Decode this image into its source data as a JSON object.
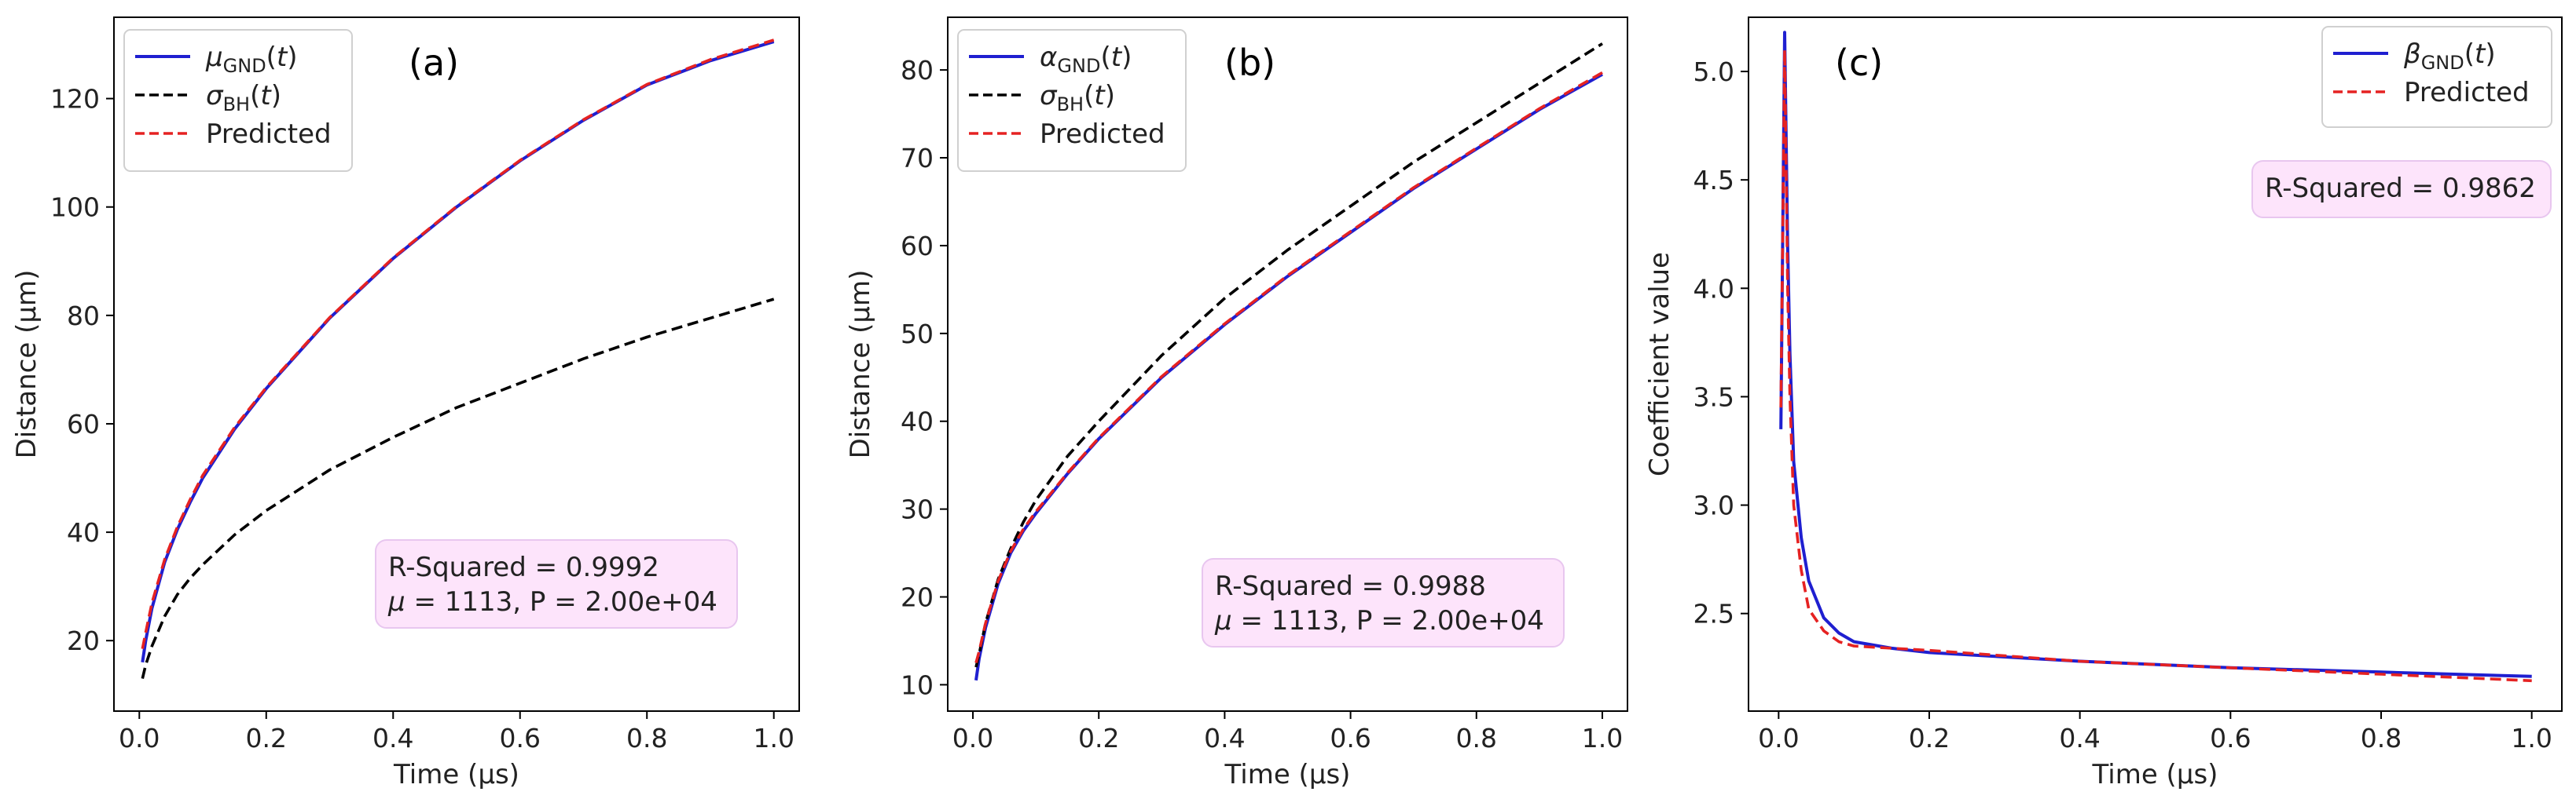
{
  "chart_data": [
    {
      "panel_label": "(a)",
      "type": "line",
      "xlabel": "Time (μs)",
      "ylabel": "Distance (μm)",
      "xlim": [
        -0.04,
        1.04
      ],
      "ylim": [
        7,
        135
      ],
      "xticks": [
        0.0,
        0.2,
        0.4,
        0.6,
        0.8,
        1.0
      ],
      "xtick_labels": [
        "0.0",
        "0.2",
        "0.4",
        "0.6",
        "0.8",
        "1.0"
      ],
      "yticks": [
        20,
        40,
        60,
        80,
        100,
        120
      ],
      "ytick_labels": [
        "20",
        "40",
        "60",
        "80",
        "100",
        "120"
      ],
      "legend_position": "top-left",
      "series": [
        {
          "name": "μ_GND(t)",
          "legend_main": "μ",
          "legend_sub": "GND",
          "legend_tail": "(t)",
          "color": "#1f1fd0",
          "style": "solid",
          "x": [
            0.005,
            0.01,
            0.02,
            0.04,
            0.06,
            0.08,
            0.1,
            0.15,
            0.2,
            0.3,
            0.4,
            0.5,
            0.6,
            0.7,
            0.8,
            0.9,
            1.0
          ],
          "y": [
            16,
            20,
            26,
            34.5,
            40.5,
            45.5,
            50,
            59,
            66.5,
            79.5,
            90.5,
            100,
            108.5,
            116,
            122.5,
            127,
            130.5
          ]
        },
        {
          "name": "σ_BH(t)",
          "legend_main": "σ",
          "legend_sub": "BH",
          "legend_tail": "(t)",
          "color": "#000000",
          "style": "dashed",
          "x": [
            0.005,
            0.01,
            0.02,
            0.04,
            0.06,
            0.08,
            0.1,
            0.15,
            0.2,
            0.3,
            0.4,
            0.5,
            0.6,
            0.7,
            0.8,
            0.9,
            1.0
          ],
          "y": [
            13,
            15.5,
            19,
            24.5,
            28.5,
            31.5,
            34,
            39.5,
            44,
            51.5,
            57.5,
            63,
            67.5,
            72,
            76,
            79.5,
            83
          ]
        },
        {
          "name": "Predicted",
          "legend_main": "Predicted",
          "legend_sub": "",
          "legend_tail": "",
          "color": "#e52222",
          "style": "dashed",
          "x": [
            0.005,
            0.01,
            0.02,
            0.04,
            0.06,
            0.08,
            0.1,
            0.15,
            0.2,
            0.3,
            0.4,
            0.5,
            0.6,
            0.7,
            0.8,
            0.9,
            1.0
          ],
          "y": [
            18.5,
            21.5,
            27,
            35,
            41,
            46,
            50.5,
            59.3,
            66.7,
            79.6,
            90.6,
            100.1,
            108.6,
            116.1,
            122.6,
            127.2,
            130.8
          ]
        }
      ],
      "annotation": {
        "line1": "R-Squared = 0.9992",
        "line2": "μ = 1113, P = 2.00e+04"
      }
    },
    {
      "panel_label": "(b)",
      "type": "line",
      "xlabel": "Time (μs)",
      "ylabel": "Distance (μm)",
      "xlim": [
        -0.04,
        1.04
      ],
      "ylim": [
        7,
        86
      ],
      "xticks": [
        0.0,
        0.2,
        0.4,
        0.6,
        0.8,
        1.0
      ],
      "xtick_labels": [
        "0.0",
        "0.2",
        "0.4",
        "0.6",
        "0.8",
        "1.0"
      ],
      "yticks": [
        10,
        20,
        30,
        40,
        50,
        60,
        70,
        80
      ],
      "ytick_labels": [
        "10",
        "20",
        "30",
        "40",
        "50",
        "60",
        "70",
        "80"
      ],
      "legend_position": "top-left",
      "series": [
        {
          "name": "α_GND(t)",
          "legend_main": "α",
          "legend_sub": "GND",
          "legend_tail": "(t)",
          "color": "#1f1fd0",
          "style": "solid",
          "x": [
            0.005,
            0.01,
            0.02,
            0.04,
            0.06,
            0.08,
            0.1,
            0.15,
            0.2,
            0.3,
            0.4,
            0.5,
            0.6,
            0.7,
            0.8,
            0.9,
            1.0
          ],
          "y": [
            10.5,
            13,
            16.5,
            21.5,
            25,
            27.5,
            29.5,
            34,
            38,
            45,
            51,
            56.5,
            61.5,
            66.5,
            71,
            75.5,
            79.5
          ]
        },
        {
          "name": "σ_BH(t)",
          "legend_main": "σ",
          "legend_sub": "BH",
          "legend_tail": "(t)",
          "color": "#000000",
          "style": "dashed",
          "x": [
            0.005,
            0.01,
            0.02,
            0.04,
            0.06,
            0.08,
            0.1,
            0.15,
            0.2,
            0.3,
            0.4,
            0.5,
            0.6,
            0.7,
            0.8,
            0.9,
            1.0
          ],
          "y": [
            12,
            13.5,
            17,
            22,
            25.5,
            28.5,
            31,
            36,
            40,
            47.5,
            54,
            59.5,
            64.5,
            69.5,
            74,
            78.5,
            83
          ]
        },
        {
          "name": "Predicted",
          "legend_main": "Predicted",
          "legend_sub": "",
          "legend_tail": "",
          "color": "#e52222",
          "style": "dashed",
          "x": [
            0.005,
            0.01,
            0.02,
            0.04,
            0.06,
            0.08,
            0.1,
            0.15,
            0.2,
            0.3,
            0.4,
            0.5,
            0.6,
            0.7,
            0.8,
            0.9,
            1.0
          ],
          "y": [
            12.5,
            13.8,
            17,
            21.8,
            25.2,
            27.7,
            29.7,
            34.1,
            38.1,
            45.1,
            51.1,
            56.6,
            61.6,
            66.6,
            71.1,
            75.6,
            79.7
          ]
        }
      ],
      "annotation": {
        "line1": "R-Squared = 0.9988",
        "line2": "μ = 1113, P = 2.00e+04"
      }
    },
    {
      "panel_label": "(c)",
      "type": "line",
      "xlabel": "Time (μs)",
      "ylabel": "Coefficient value",
      "xlim": [
        -0.04,
        1.04
      ],
      "ylim": [
        2.05,
        5.25
      ],
      "xticks": [
        0.0,
        0.2,
        0.4,
        0.6,
        0.8,
        1.0
      ],
      "xtick_labels": [
        "0.0",
        "0.2",
        "0.4",
        "0.6",
        "0.8",
        "1.0"
      ],
      "yticks": [
        2.5,
        3.0,
        3.5,
        4.0,
        4.5,
        5.0
      ],
      "ytick_labels": [
        "2.5",
        "3.0",
        "3.5",
        "4.0",
        "4.5",
        "5.0"
      ],
      "legend_position": "top-right",
      "series": [
        {
          "name": "β_GND(t)",
          "legend_main": "β",
          "legend_sub": "GND",
          "legend_tail": "(t)",
          "color": "#1f1fd0",
          "style": "solid",
          "x": [
            0.003,
            0.008,
            0.012,
            0.015,
            0.02,
            0.03,
            0.04,
            0.06,
            0.08,
            0.1,
            0.15,
            0.2,
            0.4,
            0.6,
            0.8,
            1.0
          ],
          "y": [
            3.35,
            5.18,
            4.2,
            3.7,
            3.2,
            2.85,
            2.65,
            2.48,
            2.41,
            2.37,
            2.34,
            2.32,
            2.28,
            2.25,
            2.23,
            2.21
          ]
        },
        {
          "name": "Predicted",
          "legend_main": "Predicted",
          "legend_sub": "",
          "legend_tail": "",
          "color": "#e52222",
          "style": "dashed",
          "x": [
            0.003,
            0.008,
            0.012,
            0.015,
            0.02,
            0.03,
            0.04,
            0.06,
            0.08,
            0.1,
            0.15,
            0.2,
            0.4,
            0.6,
            0.8,
            1.0
          ],
          "y": [
            3.45,
            5.1,
            4.0,
            3.5,
            3.0,
            2.7,
            2.52,
            2.42,
            2.37,
            2.35,
            2.34,
            2.33,
            2.28,
            2.25,
            2.22,
            2.19
          ]
        }
      ],
      "annotation": {
        "line1": "R-Squared = 0.9862",
        "line2": ""
      }
    }
  ],
  "colors": {
    "blue_line": "#1f1fd0",
    "black_dash": "#000000",
    "red_dash": "#e52222",
    "annotation_fill": "#fde4fb",
    "annotation_border": "#e8c6ef"
  }
}
